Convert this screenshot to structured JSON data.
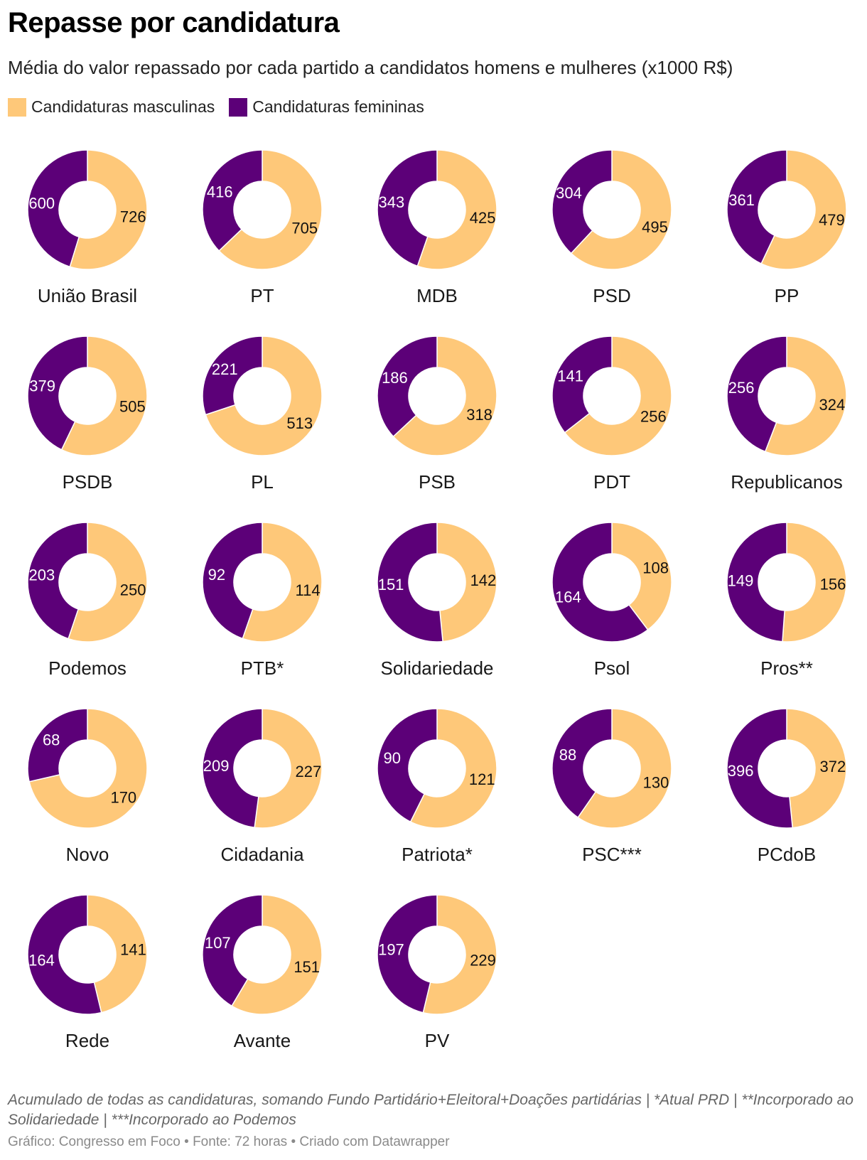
{
  "title": "Repasse por candidatura",
  "subtitle": "Média do valor repassado por cada partido a candidatos homens e mulheres (x1000 R$)",
  "legend": {
    "male": {
      "label": "Candidaturas masculinas",
      "color": "#fec879"
    },
    "female": {
      "label": "Candidaturas femininas",
      "color": "#5c0078"
    }
  },
  "chart_data": {
    "type": "pie",
    "variant": "donut-small-multiples",
    "series_names": [
      "Candidaturas masculinas",
      "Candidaturas femininas"
    ],
    "unit": "x1000 R$",
    "parties": [
      {
        "name": "União Brasil",
        "male": 726,
        "female": 600
      },
      {
        "name": "PT",
        "male": 705,
        "female": 416
      },
      {
        "name": "MDB",
        "male": 425,
        "female": 343
      },
      {
        "name": "PSD",
        "male": 495,
        "female": 304
      },
      {
        "name": "PP",
        "male": 479,
        "female": 361
      },
      {
        "name": "PSDB",
        "male": 505,
        "female": 379
      },
      {
        "name": "PL",
        "male": 513,
        "female": 221
      },
      {
        "name": "PSB",
        "male": 318,
        "female": 186
      },
      {
        "name": "PDT",
        "male": 256,
        "female": 141
      },
      {
        "name": "Republicanos",
        "male": 324,
        "female": 256
      },
      {
        "name": "Podemos",
        "male": 250,
        "female": 203
      },
      {
        "name": "PTB*",
        "male": 114,
        "female": 92
      },
      {
        "name": "Solidariedade",
        "male": 142,
        "female": 151
      },
      {
        "name": "Psol",
        "male": 108,
        "female": 164
      },
      {
        "name": "Pros**",
        "male": 156,
        "female": 149
      },
      {
        "name": "Novo",
        "male": 170,
        "female": 68
      },
      {
        "name": "Cidadania",
        "male": 227,
        "female": 209
      },
      {
        "name": "Patriota*",
        "male": 121,
        "female": 90
      },
      {
        "name": "PSC***",
        "male": 130,
        "female": 88
      },
      {
        "name": "PCdoB",
        "male": 372,
        "female": 396
      },
      {
        "name": "Rede",
        "male": 141,
        "female": 164
      },
      {
        "name": "Avante",
        "male": 151,
        "female": 107
      },
      {
        "name": "PV",
        "male": 229,
        "female": 197
      }
    ]
  },
  "notes": "Acumulado de todas as candidaturas, somando Fundo Partidário+Eleitoral+Doações partidárias | *Atual PRD | **Incorporado ao Solidariedade | ***Incorporado ao Podemos",
  "credits": "Gráfico: Congresso em Foco • Fonte: 72 horas • Criado com Datawrapper"
}
